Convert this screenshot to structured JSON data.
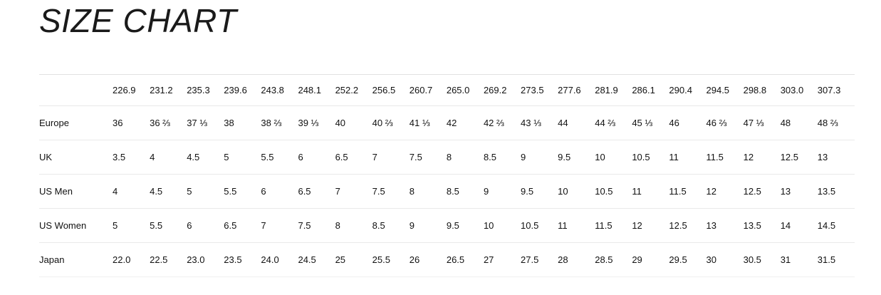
{
  "page": {
    "title": "SIZE CHART"
  },
  "colors": {
    "background": "#ffffff",
    "text": "#111111",
    "divider": "#e9e9e9"
  },
  "chart_data": {
    "type": "table",
    "title": "SIZE CHART",
    "columns": [
      "226.9",
      "231.2",
      "235.3",
      "239.6",
      "243.8",
      "248.1",
      "252.2",
      "256.5",
      "260.7",
      "265.0",
      "269.2",
      "273.5",
      "277.6",
      "281.9",
      "286.1",
      "290.4",
      "294.5",
      "298.8",
      "303.0",
      "307.3"
    ],
    "rows": [
      {
        "label": "Europe",
        "values": [
          "36",
          "36 ⅔",
          "37 ⅓",
          "38",
          "38 ⅔",
          "39 ⅓",
          "40",
          "40 ⅔",
          "41 ⅓",
          "42",
          "42 ⅔",
          "43 ⅓",
          "44",
          "44 ⅔",
          "45 ⅓",
          "46",
          "46 ⅔",
          "47 ⅓",
          "48",
          "48 ⅔"
        ]
      },
      {
        "label": "UK",
        "values": [
          "3.5",
          "4",
          "4.5",
          "5",
          "5.5",
          "6",
          "6.5",
          "7",
          "7.5",
          "8",
          "8.5",
          "9",
          "9.5",
          "10",
          "10.5",
          "11",
          "11.5",
          "12",
          "12.5",
          "13"
        ]
      },
      {
        "label": "US Men",
        "values": [
          "4",
          "4.5",
          "5",
          "5.5",
          "6",
          "6.5",
          "7",
          "7.5",
          "8",
          "8.5",
          "9",
          "9.5",
          "10",
          "10.5",
          "11",
          "11.5",
          "12",
          "12.5",
          "13",
          "13.5"
        ]
      },
      {
        "label": "US Women",
        "values": [
          "5",
          "5.5",
          "6",
          "6.5",
          "7",
          "7.5",
          "8",
          "8.5",
          "9",
          "9.5",
          "10",
          "10.5",
          "11",
          "11.5",
          "12",
          "12.5",
          "13",
          "13.5",
          "14",
          "14.5"
        ]
      },
      {
        "label": "Japan",
        "values": [
          "22.0",
          "22.5",
          "23.0",
          "23.5",
          "24.0",
          "24.5",
          "25",
          "25.5",
          "26",
          "26.5",
          "27",
          "27.5",
          "28",
          "28.5",
          "29",
          "29.5",
          "30",
          "30.5",
          "31",
          "31.5"
        ]
      }
    ]
  }
}
